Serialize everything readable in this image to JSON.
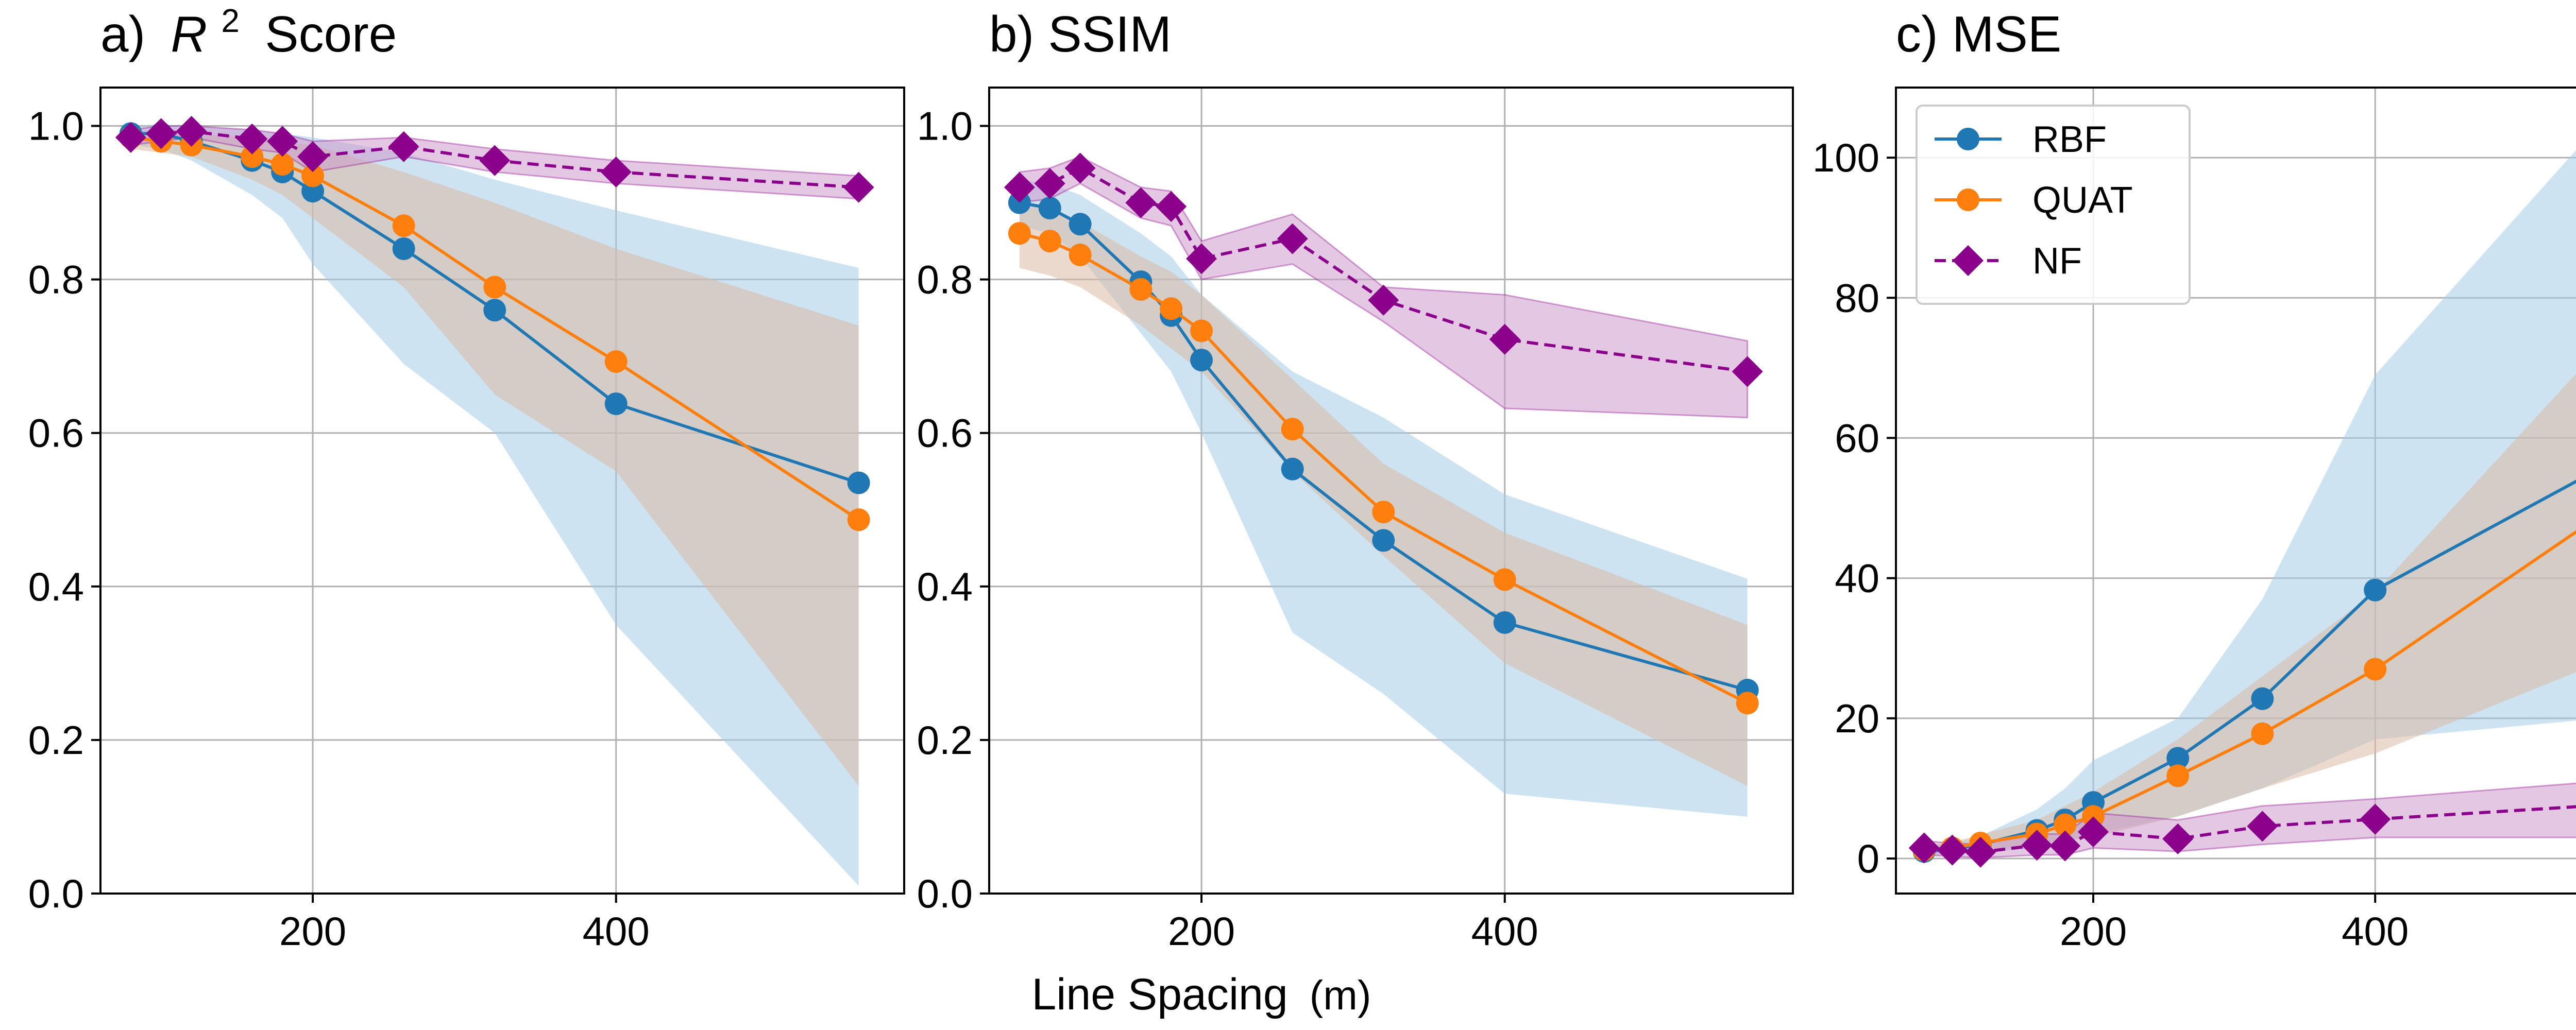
{
  "figure": {
    "shared_xlabel": "Line Spacing",
    "shared_xlabel_unit": "(m)"
  },
  "chart_data": [
    {
      "type": "line",
      "title_prefix": "a)",
      "title_symbol": "R",
      "title_superscript": "2",
      "title_suffix": "Score",
      "xlabel": "",
      "ylabel": "",
      "xlim": [
        60,
        590
      ],
      "ylim": [
        0,
        1.05
      ],
      "xticks": [
        200,
        400
      ],
      "yticks": [
        0.0,
        0.2,
        0.4,
        0.6,
        0.8,
        1.0
      ],
      "ytick_labels": [
        "0.0",
        "0.2",
        "0.4",
        "0.6",
        "0.8",
        "1.0"
      ],
      "grid": true,
      "x": [
        80,
        100,
        120,
        160,
        180,
        200,
        260,
        320,
        400,
        560
      ],
      "series": [
        {
          "key": "RBF",
          "color": "#1f77b4",
          "marker": "circle",
          "dashed": false,
          "values": [
            0.99,
            0.99,
            0.98,
            0.955,
            0.94,
            0.915,
            0.84,
            0.76,
            0.638,
            0.535
          ],
          "band_lower": [
            0.975,
            0.97,
            0.955,
            0.91,
            0.88,
            0.82,
            0.69,
            0.6,
            0.35,
            0.01
          ],
          "band_upper": [
            1.0,
            1.0,
            1.0,
            0.995,
            0.99,
            0.985,
            0.965,
            0.93,
            0.89,
            0.815
          ]
        },
        {
          "key": "QUAT",
          "color": "#ff7f0e",
          "marker": "circle",
          "dashed": false,
          "values": [
            0.985,
            0.98,
            0.975,
            0.96,
            0.95,
            0.935,
            0.87,
            0.79,
            0.693,
            0.487
          ],
          "band_lower": [
            0.97,
            0.965,
            0.96,
            0.93,
            0.91,
            0.88,
            0.79,
            0.65,
            0.55,
            0.14
          ],
          "band_upper": [
            0.995,
            0.99,
            0.99,
            0.985,
            0.98,
            0.975,
            0.94,
            0.9,
            0.84,
            0.74
          ]
        },
        {
          "key": "NF",
          "color": "#8b008b",
          "marker": "diamond",
          "dashed": true,
          "values": [
            0.985,
            0.99,
            0.993,
            0.983,
            0.98,
            0.96,
            0.973,
            0.955,
            0.94,
            0.92
          ],
          "band_lower": [
            0.975,
            0.98,
            0.985,
            0.97,
            0.965,
            0.94,
            0.96,
            0.94,
            0.925,
            0.905
          ],
          "band_upper": [
            0.995,
            1.0,
            1.0,
            0.995,
            0.99,
            0.98,
            0.985,
            0.97,
            0.955,
            0.935
          ]
        }
      ]
    },
    {
      "type": "line",
      "title": "b) SSIM",
      "xlabel": "",
      "ylabel": "",
      "xlim": [
        60,
        590
      ],
      "ylim": [
        0,
        1.05
      ],
      "xticks": [
        200,
        400
      ],
      "yticks": [
        0.0,
        0.2,
        0.4,
        0.6,
        0.8,
        1.0
      ],
      "ytick_labels": [
        "0.0",
        "0.2",
        "0.4",
        "0.6",
        "0.8",
        "1.0"
      ],
      "grid": true,
      "x": [
        80,
        100,
        120,
        160,
        180,
        200,
        260,
        320,
        400,
        560
      ],
      "series": [
        {
          "key": "RBF",
          "color": "#1f77b4",
          "marker": "circle",
          "dashed": false,
          "values": [
            0.9,
            0.893,
            0.872,
            0.797,
            0.753,
            0.695,
            0.553,
            0.46,
            0.353,
            0.265
          ],
          "band_lower": [
            0.87,
            0.86,
            0.83,
            0.73,
            0.68,
            0.6,
            0.34,
            0.26,
            0.13,
            0.1
          ],
          "band_upper": [
            0.93,
            0.925,
            0.91,
            0.86,
            0.83,
            0.78,
            0.68,
            0.62,
            0.52,
            0.41
          ]
        },
        {
          "key": "QUAT",
          "color": "#ff7f0e",
          "marker": "circle",
          "dashed": false,
          "values": [
            0.86,
            0.85,
            0.832,
            0.787,
            0.762,
            0.733,
            0.605,
            0.497,
            0.409,
            0.248
          ],
          "band_lower": [
            0.815,
            0.805,
            0.79,
            0.74,
            0.71,
            0.68,
            0.55,
            0.44,
            0.3,
            0.14
          ],
          "band_upper": [
            0.9,
            0.89,
            0.875,
            0.83,
            0.81,
            0.78,
            0.67,
            0.56,
            0.47,
            0.35
          ]
        },
        {
          "key": "NF",
          "color": "#8b008b",
          "marker": "diamond",
          "dashed": true,
          "values": [
            0.92,
            0.925,
            0.945,
            0.9,
            0.895,
            0.827,
            0.853,
            0.773,
            0.722,
            0.68
          ],
          "band_lower": [
            0.9,
            0.905,
            0.925,
            0.88,
            0.87,
            0.8,
            0.82,
            0.745,
            0.632,
            0.62
          ],
          "band_upper": [
            0.94,
            0.945,
            0.96,
            0.92,
            0.915,
            0.85,
            0.885,
            0.79,
            0.78,
            0.72
          ]
        }
      ]
    },
    {
      "type": "line",
      "title": "c) MSE",
      "xlabel": "",
      "ylabel": "",
      "xlim": [
        60,
        590
      ],
      "ylim": [
        -5,
        110
      ],
      "xticks": [
        200,
        400
      ],
      "yticks": [
        0,
        20,
        40,
        60,
        80,
        100
      ],
      "ytick_labels": [
        "0",
        "20",
        "40",
        "60",
        "80",
        "100"
      ],
      "grid": true,
      "legend_position": "top-left",
      "x": [
        80,
        100,
        120,
        160,
        180,
        200,
        260,
        320,
        400,
        560
      ],
      "series": [
        {
          "key": "RBF",
          "color": "#1f77b4",
          "marker": "circle",
          "dashed": false,
          "values": [
            1.0,
            1.3,
            2.0,
            4.0,
            5.5,
            8.0,
            14.3,
            22.8,
            38.3,
            55.7
          ],
          "band_lower": [
            0.4,
            0.5,
            0.8,
            1.5,
            2.5,
            3.5,
            6.0,
            10.0,
            17.0,
            20.0
          ],
          "band_upper": [
            1.6,
            2.1,
            3.2,
            7.0,
            10.0,
            14.0,
            20.0,
            37.0,
            69.0,
            105.0
          ]
        },
        {
          "key": "QUAT",
          "color": "#ff7f0e",
          "marker": "circle",
          "dashed": false,
          "values": [
            1.2,
            1.5,
            2.2,
            3.5,
            4.8,
            6.0,
            11.8,
            17.8,
            27.0,
            49.0
          ],
          "band_lower": [
            0.6,
            0.7,
            1.0,
            1.8,
            2.5,
            3.0,
            6.0,
            10.0,
            15.0,
            28.0
          ],
          "band_upper": [
            1.8,
            2.3,
            3.4,
            5.5,
            7.5,
            9.5,
            17.0,
            26.0,
            38.0,
            73.0
          ]
        },
        {
          "key": "NF",
          "color": "#8b008b",
          "marker": "diamond",
          "dashed": true,
          "values": [
            1.5,
            1.2,
            0.9,
            1.9,
            1.8,
            3.8,
            2.8,
            4.6,
            5.6,
            7.6
          ],
          "band_lower": [
            0.5,
            0.3,
            0.1,
            0.5,
            0.5,
            1.5,
            1.0,
            2.0,
            3.0,
            3.0
          ],
          "band_upper": [
            2.5,
            2.2,
            2.0,
            3.5,
            3.5,
            6.5,
            5.5,
            7.5,
            8.5,
            11.0
          ]
        }
      ]
    }
  ],
  "legend": [
    {
      "label": "RBF",
      "color": "#1f77b4",
      "marker": "circle",
      "dashed": false
    },
    {
      "label": "QUAT",
      "color": "#ff7f0e",
      "marker": "circle",
      "dashed": false
    },
    {
      "label": "NF",
      "color": "#8b008b",
      "marker": "diamond",
      "dashed": true
    }
  ],
  "colors": {
    "RBF_band": "#a6cce6",
    "QUAT_band": "#d9b9a3",
    "NF_band": "#cc99cc",
    "grid": "#b0b0b0"
  }
}
